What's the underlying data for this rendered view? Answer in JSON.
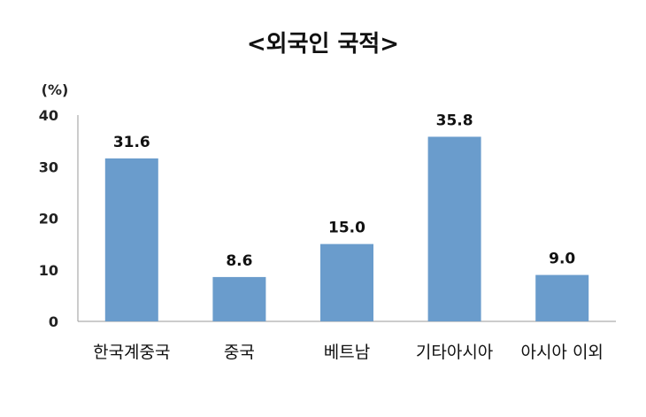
{
  "chart_data": {
    "type": "bar",
    "title": "<외국인 국적>",
    "unit_label": "(%)",
    "categories": [
      "한국계중국",
      "중국",
      "베트남",
      "기타아시아",
      "아시아 이외"
    ],
    "values": [
      31.6,
      8.6,
      15.0,
      35.8,
      9.0
    ],
    "value_labels": [
      "31.6",
      "8.6",
      "15.0",
      "35.8",
      "9.0"
    ],
    "ylim": [
      0,
      40
    ],
    "yticks": [
      "0",
      "10",
      "20",
      "30",
      "40"
    ],
    "bar_color": "#6a9ccc",
    "grid": false,
    "legend": "none"
  }
}
